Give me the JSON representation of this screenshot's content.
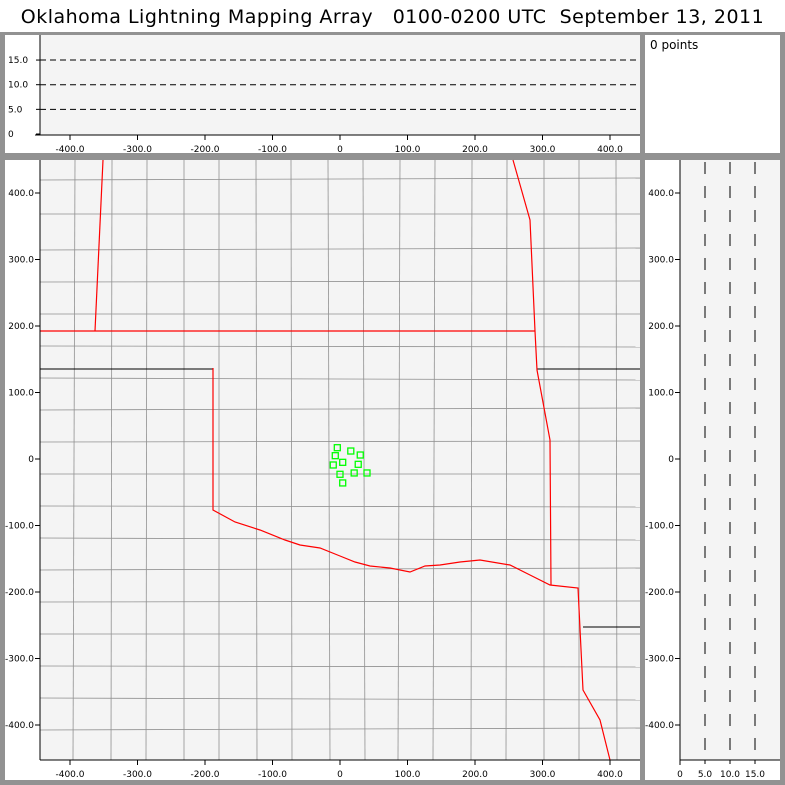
{
  "title": "Oklahoma Lightning Mapping Array   0100-0200 UTC  September 13, 2011",
  "info": {
    "points_label": "0 points"
  },
  "colors": {
    "state_border": "#ff0000",
    "county_line": "#909090",
    "source_marker": "#00ff00",
    "panel_bg": "#f4f4f4",
    "frame": "#929292"
  },
  "chart_data": [
    {
      "type": "scatter",
      "panel": "plan-view",
      "xlabel": "",
      "ylabel": "",
      "xlim": [
        -445,
        445
      ],
      "ylim": [
        -445,
        450
      ],
      "x_ticks": [
        "-400.0",
        "-300.0",
        "-200.0",
        "-100.0",
        "0",
        "100.0",
        "200.0",
        "300.0",
        "400.0"
      ],
      "y_ticks": [
        "400.0",
        "300.0",
        "200.0",
        "100.0",
        "0",
        "-100.0",
        "-200.0",
        "-300.0",
        "-400.0"
      ],
      "points": [
        [
          -4,
          17
        ],
        [
          16,
          12
        ],
        [
          30,
          6
        ],
        [
          -7,
          5
        ],
        [
          -10,
          -9
        ],
        [
          4,
          -5
        ],
        [
          27,
          -8
        ],
        [
          0,
          -23
        ],
        [
          21,
          -21
        ],
        [
          40,
          -21
        ],
        [
          4,
          -36
        ]
      ]
    },
    {
      "type": "line",
      "panel": "east-west-altitude",
      "xlim": [
        -445,
        445
      ],
      "ylim": [
        0,
        20
      ],
      "x_ticks": [
        "-400.0",
        "-300.0",
        "-200.0",
        "-100.0",
        "0",
        "100.0",
        "200.0",
        "300.0",
        "400.0"
      ],
      "y_ticks": [
        "15.0",
        "10.0",
        "5.0",
        "0"
      ],
      "reference_lines": [
        5,
        10,
        15
      ]
    },
    {
      "type": "line",
      "panel": "north-south-altitude",
      "xlim": [
        0,
        20
      ],
      "ylim": [
        -445,
        450
      ],
      "x_ticks": [
        "0",
        "5.0",
        "10.0",
        "15.0"
      ],
      "y_ticks": [
        "400.0",
        "300.0",
        "200.0",
        "100.0",
        "0",
        "-100.0",
        "-200.0",
        "-300.0",
        "-400.0"
      ],
      "reference_lines": [
        5,
        10,
        15
      ]
    }
  ]
}
